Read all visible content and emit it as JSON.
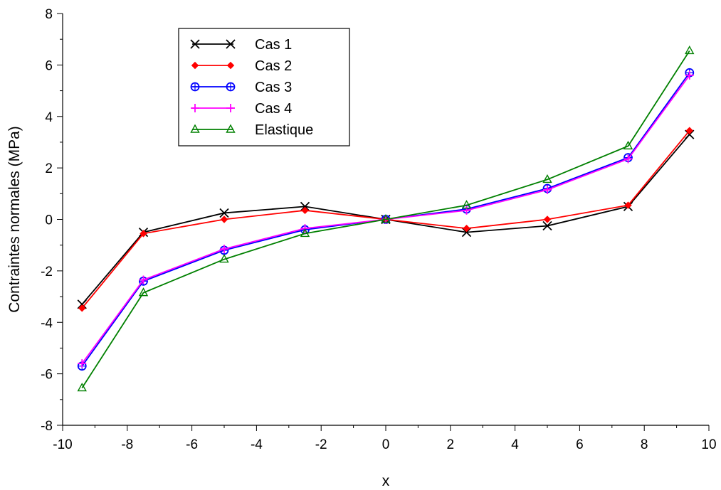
{
  "chart_data": {
    "type": "line",
    "title": "",
    "xlabel": "x",
    "ylabel": "Contraintes normales (MPa)",
    "xlim": [
      -10,
      10
    ],
    "ylim": [
      -8,
      8
    ],
    "x_ticks": [
      "-10",
      "-8",
      "-6",
      "-4",
      "-2",
      "0",
      "2",
      "4",
      "6",
      "8",
      "10"
    ],
    "y_ticks": [
      "-8",
      "-6",
      "-4",
      "-2",
      "0",
      "2",
      "4",
      "6",
      "8"
    ],
    "grid": false,
    "legend_position": "top-left",
    "x": [
      -9.4,
      -7.5,
      -5,
      -2.5,
      0,
      2.5,
      5,
      7.5,
      9.4
    ],
    "series": [
      {
        "name": "Cas 1",
        "color": "#000000",
        "marker": "x",
        "values": [
          -3.3,
          -0.5,
          0.25,
          0.5,
          0,
          -0.5,
          -0.25,
          0.5,
          3.3
        ]
      },
      {
        "name": "Cas 2",
        "color": "#ff0000",
        "marker": "diamond",
        "values": [
          -3.45,
          -0.55,
          0.0,
          0.35,
          0,
          -0.35,
          0.0,
          0.55,
          3.45
        ]
      },
      {
        "name": "Cas 3",
        "color": "#0000ff",
        "marker": "circle-plus",
        "values": [
          -5.7,
          -2.4,
          -1.2,
          -0.4,
          0,
          0.4,
          1.2,
          2.4,
          5.7
        ]
      },
      {
        "name": "Cas 4",
        "color": "#ff00ff",
        "marker": "plus",
        "values": [
          -5.6,
          -2.35,
          -1.15,
          -0.35,
          0,
          0.35,
          1.15,
          2.35,
          5.6
        ]
      },
      {
        "name": "Elastique",
        "color": "#008000",
        "marker": "triangle",
        "values": [
          -6.55,
          -2.85,
          -1.55,
          -0.55,
          0,
          0.55,
          1.55,
          2.85,
          6.55
        ]
      }
    ]
  }
}
